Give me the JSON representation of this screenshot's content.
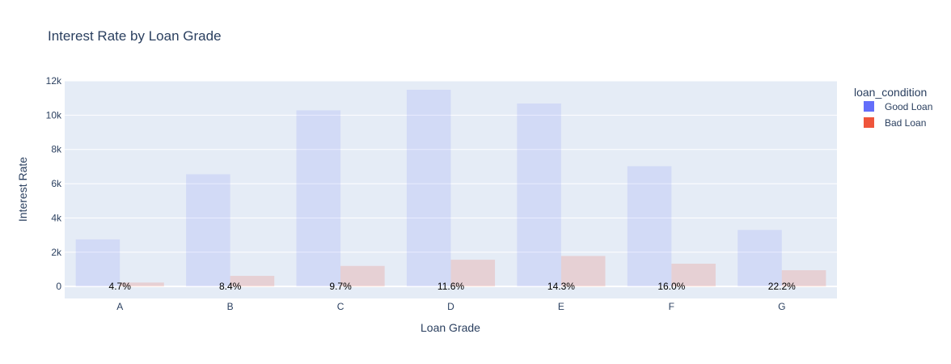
{
  "chart_data": {
    "type": "bar",
    "title": "Interest Rate by Loan Grade",
    "xlabel": "Loan Grade",
    "ylabel": "Interest Rate",
    "categories": [
      "A",
      "B",
      "C",
      "D",
      "E",
      "F",
      "G"
    ],
    "series": [
      {
        "name": "Good Loan",
        "color": "#636efa",
        "values": [
          2750,
          6550,
          10280,
          11480,
          10680,
          7020,
          3300
        ]
      },
      {
        "name": "Bad Loan",
        "color": "#ef553b",
        "values": [
          230,
          620,
          1200,
          1560,
          1780,
          1330,
          950
        ]
      }
    ],
    "bar_labels": [
      "4.7%",
      "8.4%",
      "9.7%",
      "11.6%",
      "14.3%",
      "16.0%",
      "22.2%"
    ],
    "ylim": [
      -700,
      12000
    ],
    "yticks": [
      0,
      2000,
      4000,
      6000,
      8000,
      10000,
      12000
    ],
    "ytick_labels": [
      "0",
      "2k",
      "4k",
      "6k",
      "8k",
      "10k",
      "12k"
    ],
    "grid": true,
    "legend": {
      "title": "loan_condition",
      "placement": "right"
    },
    "background": "#e5ecf6"
  }
}
